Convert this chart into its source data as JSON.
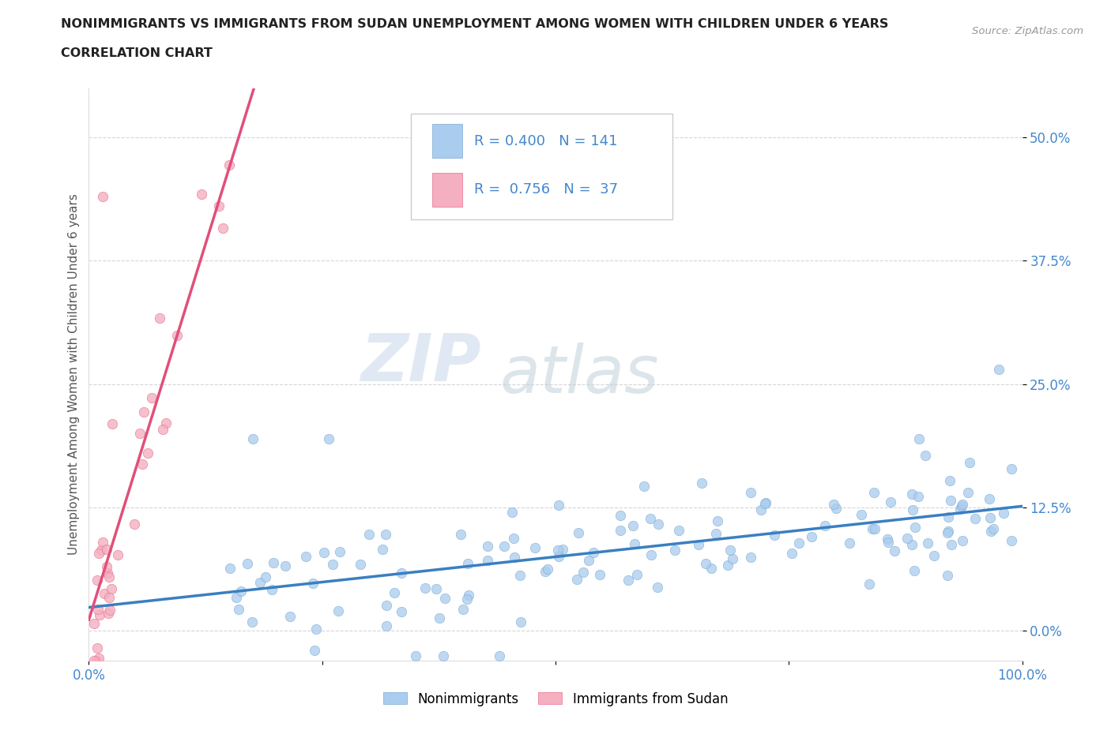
{
  "title_line1": "NONIMMIGRANTS VS IMMIGRANTS FROM SUDAN UNEMPLOYMENT AMONG WOMEN WITH CHILDREN UNDER 6 YEARS",
  "title_line2": "CORRELATION CHART",
  "source": "Source: ZipAtlas.com",
  "ylabel": "Unemployment Among Women with Children Under 6 years",
  "xlim": [
    0.0,
    1.0
  ],
  "ylim": [
    -0.03,
    0.55
  ],
  "yticks": [
    0.0,
    0.125,
    0.25,
    0.375,
    0.5
  ],
  "ytick_labels": [
    "0.0%",
    "12.5%",
    "25.0%",
    "37.5%",
    "50.0%"
  ],
  "xticks": [
    0.0,
    0.25,
    0.5,
    0.75,
    1.0
  ],
  "xtick_labels": [
    "0.0%",
    "",
    "",
    "",
    "100.0%"
  ],
  "nonimmigrant_color": "#aaccee",
  "immigrant_color": "#f4afc0",
  "nonimmigrant_edge_color": "#7aaad0",
  "immigrant_edge_color": "#e87090",
  "nonimmigrant_line_color": "#3a7fc1",
  "immigrant_line_color": "#e0507a",
  "tick_label_color": "#4488cc",
  "R_nonimmigrant": 0.4,
  "N_nonimmigrant": 141,
  "R_immigrant": 0.756,
  "N_immigrant": 37,
  "watermark_zip": "ZIP",
  "watermark_atlas": "atlas",
  "legend_labels": [
    "Nonimmigrants",
    "Immigrants from Sudan"
  ],
  "title_color": "#222222",
  "axis_color": "#555555",
  "grid_color": "#cccccc",
  "background_color": "#ffffff"
}
